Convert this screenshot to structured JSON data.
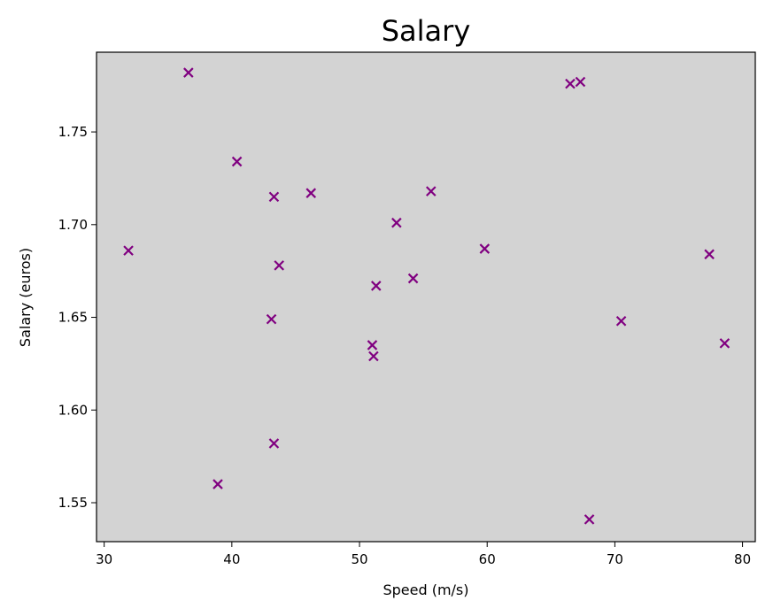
{
  "chart_data": {
    "type": "scatter",
    "title": "Salary",
    "xlabel": "Speed (m/s)",
    "ylabel": "Salary (euros)",
    "xlim": [
      29.4,
      81.0
    ],
    "ylim": [
      1.529,
      1.793
    ],
    "xticks": [
      30,
      40,
      50,
      60,
      70,
      80
    ],
    "yticks": [
      1.55,
      1.6,
      1.65,
      1.7,
      1.75
    ],
    "xtick_labels": [
      "30",
      "40",
      "50",
      "60",
      "70",
      "80"
    ],
    "ytick_labels": [
      "1.55",
      "1.60",
      "1.65",
      "1.70",
      "1.75"
    ],
    "marker": "x",
    "marker_color": "#800080",
    "background_color": "#d3d3d3",
    "grid": false,
    "series": [
      {
        "points": [
          [
            31.9,
            1.686
          ],
          [
            36.6,
            1.782
          ],
          [
            38.9,
            1.56
          ],
          [
            40.4,
            1.734
          ],
          [
            43.1,
            1.649
          ],
          [
            43.3,
            1.715
          ],
          [
            43.3,
            1.582
          ],
          [
            43.7,
            1.678
          ],
          [
            46.2,
            1.717
          ],
          [
            51.0,
            1.635
          ],
          [
            51.1,
            1.629
          ],
          [
            51.3,
            1.667
          ],
          [
            52.9,
            1.701
          ],
          [
            54.2,
            1.671
          ],
          [
            55.6,
            1.718
          ],
          [
            59.8,
            1.687
          ],
          [
            66.5,
            1.776
          ],
          [
            67.3,
            1.777
          ],
          [
            68.0,
            1.541
          ],
          [
            70.5,
            1.648
          ],
          [
            77.4,
            1.684
          ],
          [
            78.6,
            1.636
          ]
        ]
      }
    ]
  }
}
